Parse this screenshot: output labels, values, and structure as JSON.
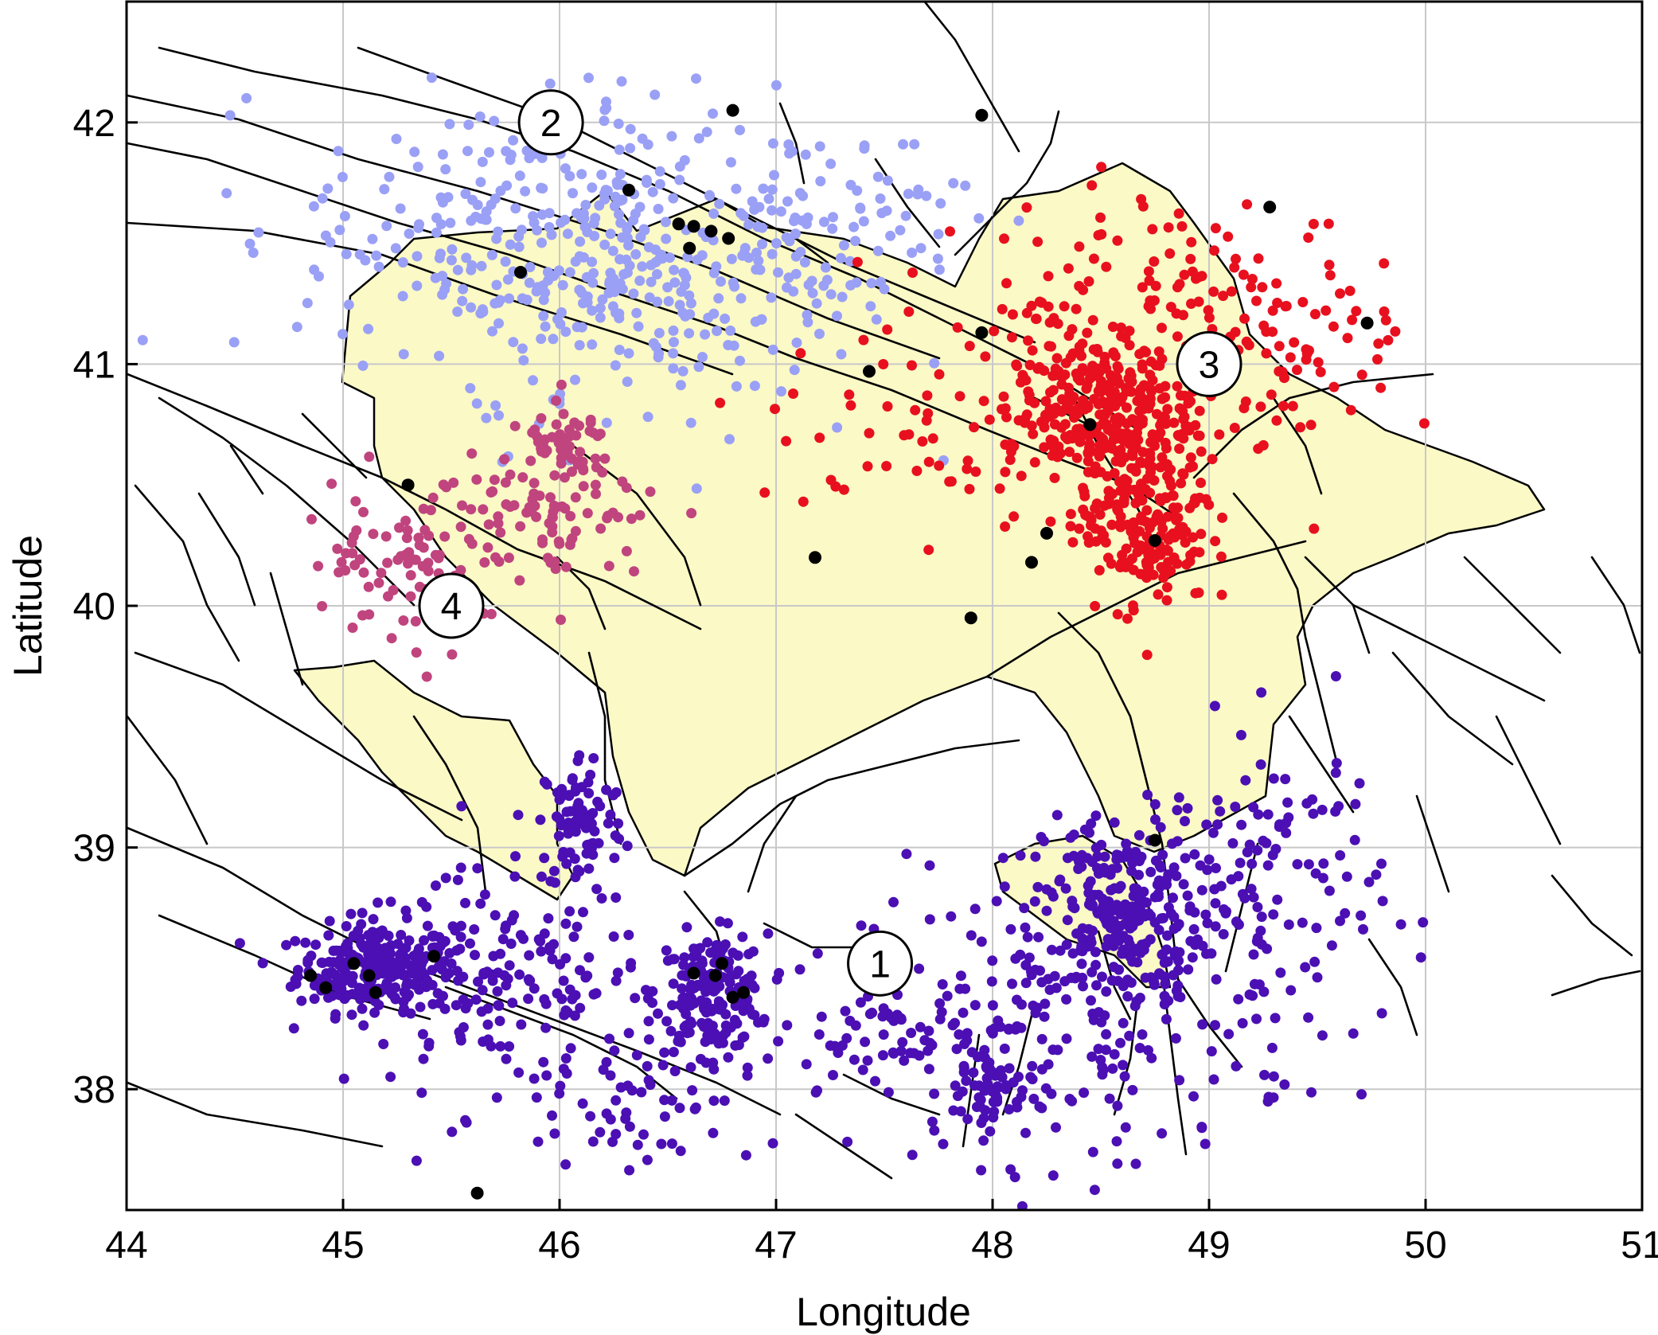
{
  "map": {
    "xlabel": "Longitude",
    "ylabel": "Latitude",
    "xlim": [
      44,
      51
    ],
    "ylim": [
      37.5,
      42.5
    ],
    "x_ticks": [
      "44",
      "45",
      "46",
      "47",
      "48",
      "49",
      "50",
      "51"
    ],
    "y_ticks": [
      "38",
      "39",
      "40",
      "41",
      "42"
    ],
    "grid": true,
    "colors": {
      "land": "#fbf9c6",
      "faults": "#000000",
      "grid": "#c8c8c8",
      "zone_1": "#4b0fb4",
      "zone_2": "#9aa0f5",
      "zone_3": "#e8101e",
      "zone_4": "#c0447e",
      "strong_events": "#000000"
    },
    "zone_labels": [
      {
        "label": "1",
        "lon": 47.48,
        "lat": 38.52
      },
      {
        "label": "2",
        "lon": 45.96,
        "lat": 42.0
      },
      {
        "label": "3",
        "lon": 49.0,
        "lat": 41.0
      },
      {
        "label": "4",
        "lon": 45.5,
        "lat": 40.0
      }
    ],
    "clusters": [
      {
        "zone": "1",
        "color": "#4b0fb4",
        "n": 260,
        "lon": 45.15,
        "lat": 38.5,
        "slon": 0.18,
        "slat": 0.09
      },
      {
        "zone": "1",
        "color": "#4b0fb4",
        "n": 160,
        "lon": 45.7,
        "lat": 38.45,
        "slon": 0.35,
        "slat": 0.22
      },
      {
        "zone": "1",
        "color": "#4b0fb4",
        "n": 180,
        "lon": 46.7,
        "lat": 38.4,
        "slon": 0.13,
        "slat": 0.12
      },
      {
        "zone": "1",
        "color": "#4b0fb4",
        "n": 90,
        "lon": 46.1,
        "lat": 39.1,
        "slon": 0.1,
        "slat": 0.15
      },
      {
        "zone": "1",
        "color": "#4b0fb4",
        "n": 240,
        "lon": 48.6,
        "lat": 38.75,
        "slon": 0.18,
        "slat": 0.2
      },
      {
        "zone": "1",
        "color": "#4b0fb4",
        "n": 180,
        "lon": 48.4,
        "lat": 38.3,
        "slon": 0.5,
        "slat": 0.3
      },
      {
        "zone": "1",
        "color": "#4b0fb4",
        "n": 120,
        "lon": 49.3,
        "lat": 38.8,
        "slon": 0.25,
        "slat": 0.35
      },
      {
        "zone": "1",
        "color": "#4b0fb4",
        "n": 80,
        "lon": 47.6,
        "lat": 38.2,
        "slon": 0.35,
        "slat": 0.15
      },
      {
        "zone": "1",
        "color": "#4b0fb4",
        "n": 60,
        "lon": 48.0,
        "lat": 38.0,
        "slon": 0.12,
        "slat": 0.1
      },
      {
        "zone": "1",
        "color": "#4b0fb4",
        "n": 70,
        "lon": 46.3,
        "lat": 38.0,
        "slon": 0.3,
        "slat": 0.15
      },
      {
        "zone": "2",
        "color": "#9aa0f5",
        "n": 300,
        "lon": 45.9,
        "lat": 41.55,
        "slon": 0.55,
        "slat": 0.3
      },
      {
        "zone": "2",
        "color": "#9aa0f5",
        "n": 140,
        "lon": 46.5,
        "lat": 41.25,
        "slon": 0.45,
        "slat": 0.3
      },
      {
        "zone": "2",
        "color": "#9aa0f5",
        "n": 90,
        "lon": 47.2,
        "lat": 41.6,
        "slon": 0.35,
        "slat": 0.2
      },
      {
        "zone": "3",
        "color": "#e8101e",
        "n": 280,
        "lon": 48.5,
        "lat": 40.8,
        "slon": 0.22,
        "slat": 0.15
      },
      {
        "zone": "3",
        "color": "#e8101e",
        "n": 200,
        "lon": 48.7,
        "lat": 40.35,
        "slon": 0.15,
        "slat": 0.18
      },
      {
        "zone": "3",
        "color": "#e8101e",
        "n": 150,
        "lon": 48.7,
        "lat": 41.2,
        "slon": 0.45,
        "slat": 0.25
      },
      {
        "zone": "3",
        "color": "#e8101e",
        "n": 60,
        "lon": 47.7,
        "lat": 40.7,
        "slon": 0.4,
        "slat": 0.25
      },
      {
        "zone": "3",
        "color": "#e8101e",
        "n": 60,
        "lon": 49.3,
        "lat": 41.1,
        "slon": 0.3,
        "slat": 0.25
      },
      {
        "zone": "4",
        "color": "#c0447e",
        "n": 110,
        "lon": 45.9,
        "lat": 40.35,
        "slon": 0.3,
        "slat": 0.15
      },
      {
        "zone": "4",
        "color": "#c0447e",
        "n": 50,
        "lon": 46.05,
        "lat": 40.65,
        "slon": 0.1,
        "slat": 0.08
      },
      {
        "zone": "4",
        "color": "#c0447e",
        "n": 60,
        "lon": 45.2,
        "lat": 40.1,
        "slon": 0.2,
        "slat": 0.2
      }
    ],
    "strong_events": [
      [
        46.8,
        42.05
      ],
      [
        47.95,
        42.03
      ],
      [
        46.32,
        41.72
      ],
      [
        46.55,
        41.58
      ],
      [
        46.62,
        41.57
      ],
      [
        46.7,
        41.55
      ],
      [
        46.78,
        41.52
      ],
      [
        46.6,
        41.48
      ],
      [
        45.82,
        41.38
      ],
      [
        47.95,
        41.13
      ],
      [
        47.43,
        40.97
      ],
      [
        48.45,
        40.75
      ],
      [
        45.3,
        40.5
      ],
      [
        48.25,
        40.3
      ],
      [
        48.75,
        40.27
      ],
      [
        47.18,
        40.2
      ],
      [
        48.18,
        40.18
      ],
      [
        47.9,
        39.95
      ],
      [
        49.28,
        41.65
      ],
      [
        49.73,
        41.17
      ],
      [
        48.75,
        39.03
      ],
      [
        44.85,
        38.47
      ],
      [
        44.92,
        38.42
      ],
      [
        45.05,
        38.52
      ],
      [
        45.12,
        38.47
      ],
      [
        45.15,
        38.4
      ],
      [
        45.42,
        38.55
      ],
      [
        46.62,
        38.48
      ],
      [
        46.72,
        38.47
      ],
      [
        46.75,
        38.52
      ],
      [
        46.8,
        38.38
      ],
      [
        46.85,
        38.4
      ],
      [
        45.62,
        37.57
      ]
    ]
  }
}
